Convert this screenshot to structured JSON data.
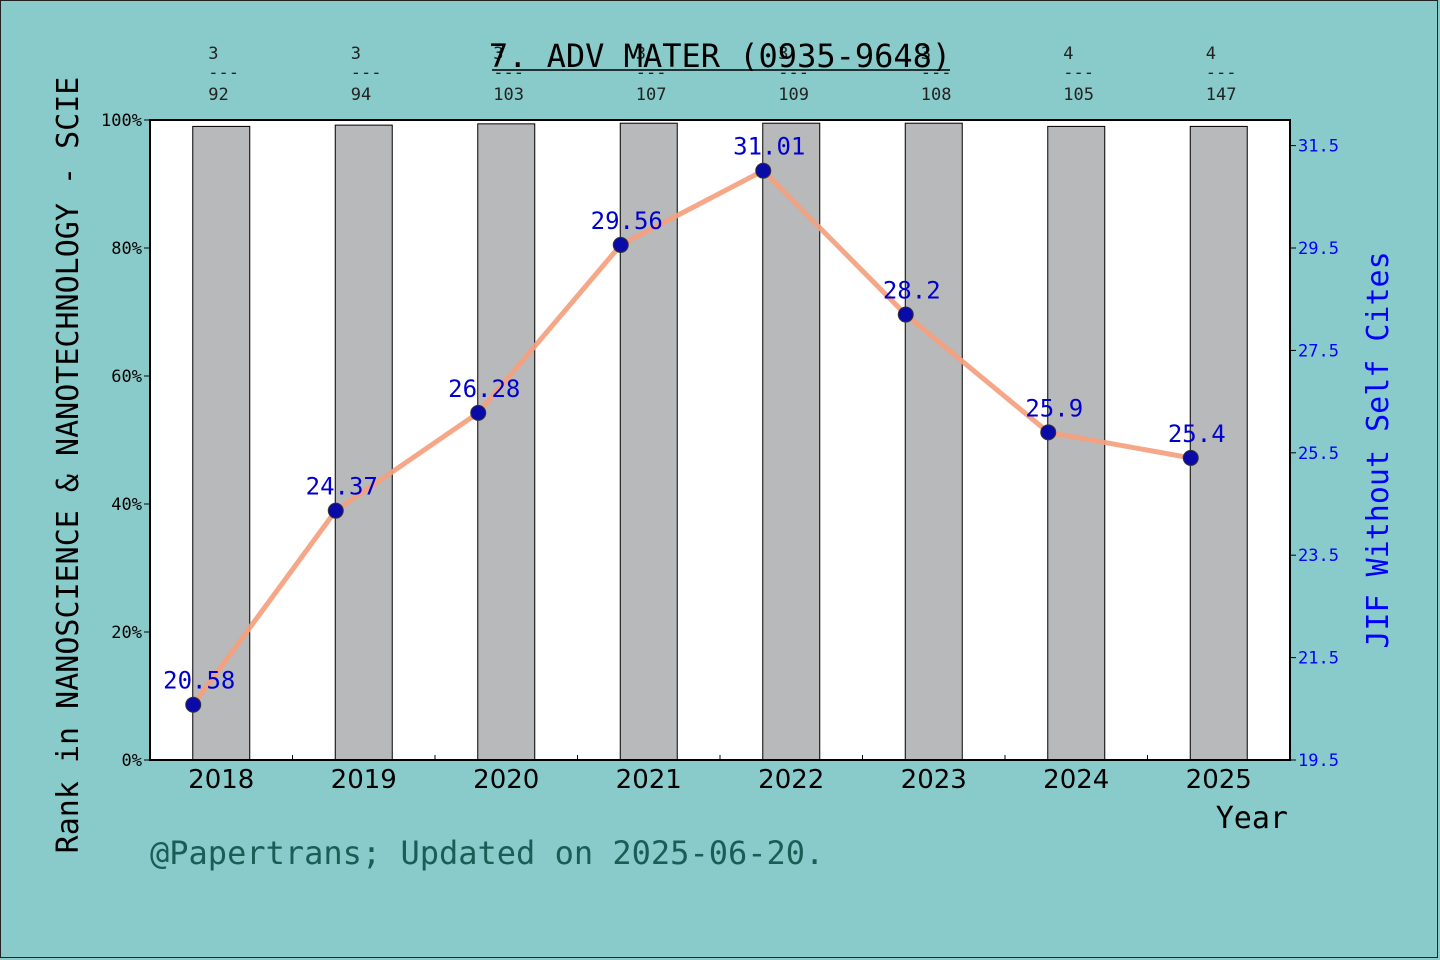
{
  "chart_data": {
    "type": "bar",
    "title": "7. ADV MATER (0935-9648)",
    "xlabel": "Year",
    "ylabel_left": "Rank in NANOSCIENCE & NANOTECHNOLOGY - SCIE",
    "ylabel_right": "JIF Without Self Cites",
    "categories": [
      "2018",
      "2019",
      "2020",
      "2021",
      "2022",
      "2023",
      "2024",
      "2025"
    ],
    "left_axis": {
      "ylim": [
        0,
        100
      ],
      "ticks": [
        "0%",
        "20%",
        "40%",
        "60%",
        "80%",
        "100%"
      ]
    },
    "right_axis": {
      "ylim": [
        19.5,
        32.0
      ],
      "ticks": [
        "19.5",
        "21.5",
        "23.5",
        "25.5",
        "27.5",
        "29.5",
        "31.5"
      ],
      "color": "#0000ff"
    },
    "rank_fractions": [
      {
        "num": "3",
        "den": "92"
      },
      {
        "num": "3",
        "den": "94"
      },
      {
        "num": "3",
        "den": "103"
      },
      {
        "num": "3",
        "den": "107"
      },
      {
        "num": "3",
        "den": "109"
      },
      {
        "num": "3",
        "den": "108"
      },
      {
        "num": "4",
        "den": "105"
      },
      {
        "num": "4",
        "den": "147"
      }
    ],
    "series": [
      {
        "type": "bar",
        "values": [
          99.0,
          99.2,
          99.4,
          99.5,
          99.5,
          99.5,
          99.0,
          99.0
        ],
        "color": "#b8b9bb"
      },
      {
        "type": "line",
        "values": [
          20.58,
          24.37,
          26.28,
          29.56,
          31.01,
          28.2,
          25.9,
          25.4
        ],
        "labels": [
          "20.58",
          "24.37",
          "26.28",
          "29.56",
          "31.01",
          "28.2",
          "25.9",
          "25.4"
        ],
        "color": "#f08a5d",
        "marker_color": "#0a0aa8"
      }
    ],
    "grid": false
  },
  "footer": {
    "credit": "@Papertrans; Updated on 2025-06-20."
  }
}
